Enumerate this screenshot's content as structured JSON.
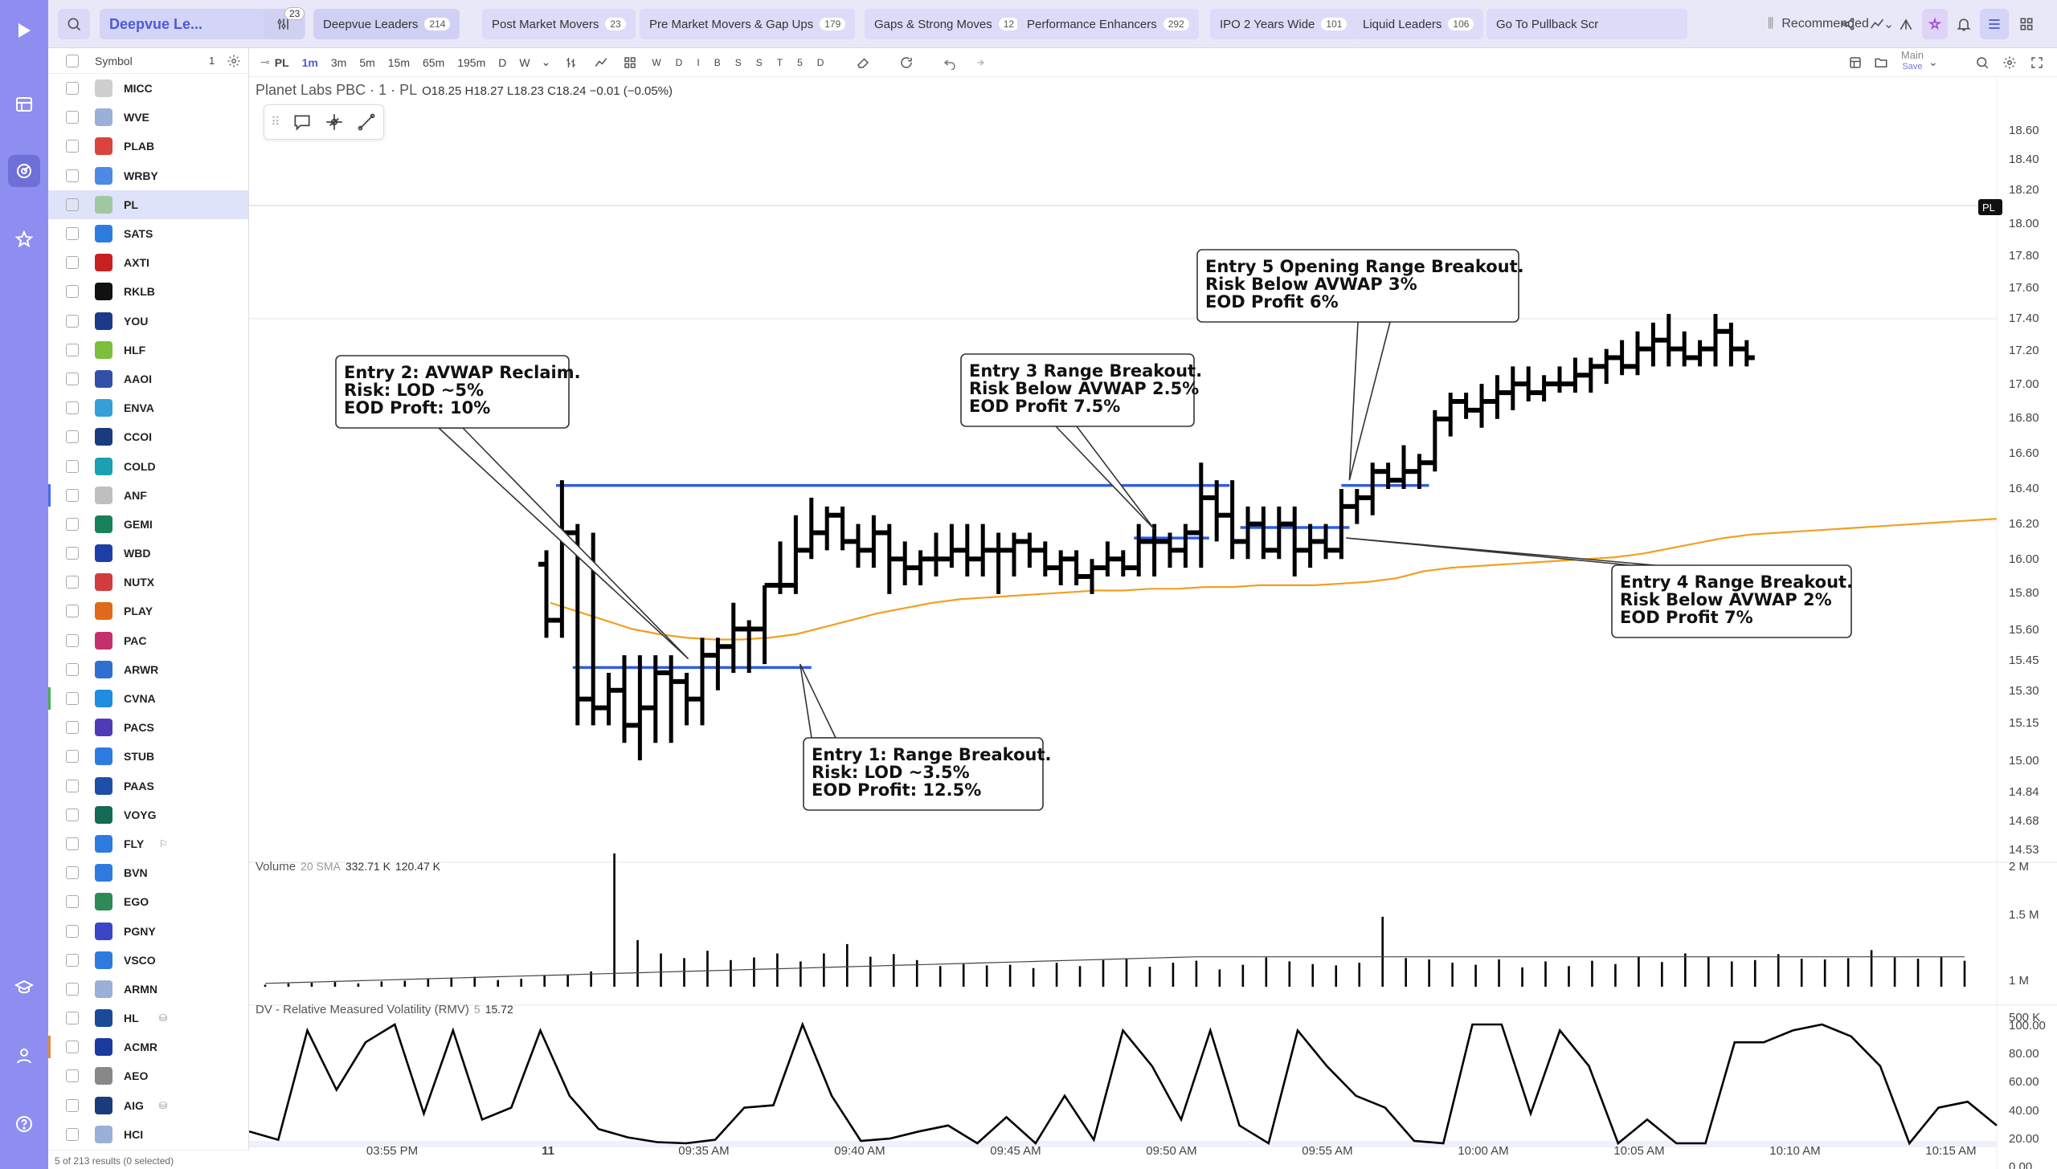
{
  "watchlist": {
    "name": "Deepvue Le...",
    "badge_count": "23"
  },
  "tabs": [
    {
      "label": "Deepvue Leaders",
      "count": "214"
    },
    {
      "label": "Post Market Movers",
      "count": "23"
    },
    {
      "label": "Pre Market Movers & Gap Ups",
      "count": "179"
    },
    {
      "label": "Gaps & Strong Moves",
      "count": "12"
    },
    {
      "label": "Performance Enhancers",
      "count": "292"
    },
    {
      "label": "IPO 2 Years Wide",
      "count": "101"
    },
    {
      "label": "Liquid Leaders",
      "count": "106"
    },
    {
      "label": "Go To Pullback Scr",
      "count": ""
    }
  ],
  "sort_label": "Recommended",
  "sidebar": {
    "header": "Symbol",
    "selected_count": "1",
    "footer": "5 of 213 results (0 selected)",
    "items": [
      {
        "symbol": "MICC",
        "color": "#cfcfcf"
      },
      {
        "symbol": "WVE",
        "color": "#9ab0d8"
      },
      {
        "symbol": "PLAB",
        "color": "#d9443c"
      },
      {
        "symbol": "WRBY",
        "color": "#4d8ae8"
      },
      {
        "symbol": "PL",
        "color": "#a0c8a0"
      },
      {
        "symbol": "SATS",
        "color": "#2e7be0"
      },
      {
        "symbol": "AXTI",
        "color": "#c82020"
      },
      {
        "symbol": "RKLB",
        "color": "#111111"
      },
      {
        "symbol": "YOU",
        "color": "#1b3b8a"
      },
      {
        "symbol": "HLF",
        "color": "#7bbf3b"
      },
      {
        "symbol": "AAOI",
        "color": "#3350a8"
      },
      {
        "symbol": "ENVA",
        "color": "#35a0d8"
      },
      {
        "symbol": "CCOI",
        "color": "#1a3c7e"
      },
      {
        "symbol": "COLD",
        "color": "#1aa0b0"
      },
      {
        "symbol": "ANF",
        "color": "#bfbfbf"
      },
      {
        "symbol": "GEMI",
        "color": "#17825a"
      },
      {
        "symbol": "WBD",
        "color": "#1d3fa8"
      },
      {
        "symbol": "NUTX",
        "color": "#d23c3c"
      },
      {
        "symbol": "PLAY",
        "color": "#e06a1b"
      },
      {
        "symbol": "PAC",
        "color": "#c3306b"
      },
      {
        "symbol": "ARWR",
        "color": "#2f6fd1"
      },
      {
        "symbol": "CVNA",
        "color": "#1f8de0"
      },
      {
        "symbol": "PACS",
        "color": "#4f3bb8"
      },
      {
        "symbol": "STUB",
        "color": "#2e7be0"
      },
      {
        "symbol": "PAAS",
        "color": "#1e4fa8"
      },
      {
        "symbol": "VOYG",
        "color": "#156a55"
      },
      {
        "symbol": "FLY",
        "color": "#2e7be0",
        "extra": "⚐"
      },
      {
        "symbol": "BVN",
        "color": "#2e7be0"
      },
      {
        "symbol": "EGO",
        "color": "#2e8a58"
      },
      {
        "symbol": "PGNY",
        "color": "#3a45c8"
      },
      {
        "symbol": "VSCO",
        "color": "#2e7be0"
      },
      {
        "symbol": "ARMN",
        "color": "#9ab0d8"
      },
      {
        "symbol": "HL",
        "color": "#1a4a98",
        "extra": "⛁"
      },
      {
        "symbol": "ACMR",
        "color": "#1a3aa0"
      },
      {
        "symbol": "AEO",
        "color": "#888888"
      },
      {
        "symbol": "AIG",
        "color": "#1a3c7e",
        "extra": "⛁"
      },
      {
        "symbol": "HCI",
        "color": "#9ab0d8"
      }
    ]
  },
  "chart_toolbar": {
    "symbol": "PL",
    "timeframes": [
      "1m",
      "3m",
      "5m",
      "15m",
      "65m",
      "195m",
      "D",
      "W"
    ],
    "active_timeframe": "1m",
    "filters": [
      "W",
      "D",
      "I",
      "B",
      "S",
      "S",
      "T",
      "5",
      "D"
    ],
    "layout_name": "Main",
    "save_label": "Save"
  },
  "legend": {
    "title": "Planet Labs PBC · 1 · PL",
    "ohlc": "O18.25  H18.27  L18.23  C18.24  −0.01 (−0.05%)"
  },
  "price_axis": [
    "18.60",
    "18.40",
    "18.20",
    "18.00",
    "17.80",
    "17.60",
    "17.40",
    "17.20",
    "17.00",
    "16.80",
    "16.60",
    "16.40",
    "16.20",
    "16.00",
    "15.80",
    "15.60",
    "15.45",
    "15.30",
    "15.15",
    "15.00",
    "14.84",
    "14.68",
    "14.53"
  ],
  "price_tag": "PL",
  "volume_label": {
    "title": "Volume",
    "sub": "20 SMA",
    "v1": "332.71 K",
    "v2": "120.47 K"
  },
  "volume_axis": [
    "2 M",
    "1.5 M",
    "1 M",
    "500 K"
  ],
  "rmv_label": {
    "title": "DV - Relative Measured Volatility (RMV)",
    "sub": "5",
    "value": "15.72"
  },
  "rmv_axis": [
    "100.00",
    "80.00",
    "60.00",
    "40.00",
    "20.00",
    "0.00"
  ],
  "time_axis": [
    "03:55 PM",
    "11",
    "09:35 AM",
    "09:40 AM",
    "09:45 AM",
    "09:50 AM",
    "09:55 AM",
    "10:00 AM",
    "10:05 AM",
    "10:10 AM",
    "10:15 AM"
  ],
  "annotations": [
    {
      "lines": [
        "Entry 2: AVWAP Reclaim.",
        "Risk: LOD ~5%",
        "EOD Proft: 10%"
      ]
    },
    {
      "lines": [
        "Entry 3 Range Breakout.",
        "Risk Below AVWAP 2.5%",
        "EOD Profit 7.5%"
      ]
    },
    {
      "lines": [
        "Entry 5 Opening Range Breakout.",
        "Risk Below AVWAP 3%",
        "EOD Profit 6%"
      ]
    },
    {
      "lines": [
        "Entry 4 Range Breakout.",
        "Risk Below AVWAP 2%",
        "EOD Profit 7%"
      ]
    },
    {
      "lines": [
        "Entry 1: Range Breakout.",
        "Risk: LOD ~3.5%",
        "EOD Profit: 12.5%"
      ]
    }
  ],
  "chart_data": {
    "type": "line",
    "candles": [
      [
        16.12,
        16.2,
        15.7,
        15.8
      ],
      [
        15.8,
        16.6,
        15.7,
        16.3
      ],
      [
        16.3,
        16.35,
        15.2,
        15.35
      ],
      [
        15.35,
        16.3,
        15.2,
        15.3
      ],
      [
        15.3,
        15.5,
        15.2,
        15.4
      ],
      [
        15.4,
        15.6,
        15.1,
        15.2
      ],
      [
        15.2,
        15.6,
        15.0,
        15.3
      ],
      [
        15.3,
        15.6,
        15.1,
        15.5
      ],
      [
        15.5,
        15.6,
        15.1,
        15.45
      ],
      [
        15.45,
        15.5,
        15.2,
        15.35
      ],
      [
        15.35,
        15.7,
        15.2,
        15.6
      ],
      [
        15.6,
        15.7,
        15.4,
        15.65
      ],
      [
        15.65,
        15.9,
        15.5,
        15.75
      ],
      [
        15.75,
        15.8,
        15.5,
        15.75
      ],
      [
        15.75,
        16.0,
        15.55,
        16.0
      ],
      [
        16.0,
        16.25,
        15.95,
        16.0
      ],
      [
        16.0,
        16.4,
        15.95,
        16.2
      ],
      [
        16.2,
        16.5,
        16.15,
        16.3
      ],
      [
        16.3,
        16.45,
        16.2,
        16.4
      ],
      [
        16.4,
        16.45,
        16.2,
        16.25
      ],
      [
        16.25,
        16.35,
        16.1,
        16.2
      ],
      [
        16.2,
        16.4,
        16.1,
        16.3
      ],
      [
        16.3,
        16.35,
        15.95,
        16.15
      ],
      [
        16.15,
        16.25,
        16.0,
        16.1
      ],
      [
        16.1,
        16.2,
        16.0,
        16.15
      ],
      [
        16.15,
        16.3,
        16.05,
        16.15
      ],
      [
        16.15,
        16.35,
        16.1,
        16.2
      ],
      [
        16.2,
        16.35,
        16.05,
        16.15
      ],
      [
        16.15,
        16.35,
        16.05,
        16.2
      ],
      [
        16.2,
        16.3,
        15.95,
        16.2
      ],
      [
        16.2,
        16.3,
        16.05,
        16.25
      ],
      [
        16.25,
        16.3,
        16.1,
        16.2
      ],
      [
        16.2,
        16.25,
        16.05,
        16.1
      ],
      [
        16.1,
        16.2,
        16.0,
        16.15
      ],
      [
        16.15,
        16.2,
        16.0,
        16.05
      ],
      [
        16.05,
        16.15,
        15.95,
        16.1
      ],
      [
        16.1,
        16.25,
        16.05,
        16.15
      ],
      [
        16.15,
        16.2,
        16.05,
        16.1
      ],
      [
        16.1,
        16.35,
        16.05,
        16.25
      ],
      [
        16.25,
        16.35,
        16.05,
        16.25
      ],
      [
        16.25,
        16.3,
        16.1,
        16.2
      ],
      [
        16.2,
        16.35,
        16.1,
        16.3
      ],
      [
        16.3,
        16.7,
        16.1,
        16.5
      ],
      [
        16.5,
        16.6,
        16.25,
        16.4
      ],
      [
        16.4,
        16.6,
        16.15,
        16.25
      ],
      [
        16.25,
        16.45,
        16.15,
        16.35
      ],
      [
        16.35,
        16.45,
        16.15,
        16.2
      ],
      [
        16.2,
        16.45,
        16.15,
        16.35
      ],
      [
        16.35,
        16.45,
        16.05,
        16.2
      ],
      [
        16.2,
        16.35,
        16.1,
        16.25
      ],
      [
        16.25,
        16.35,
        16.15,
        16.2
      ],
      [
        16.2,
        16.55,
        16.15,
        16.45
      ],
      [
        16.45,
        16.55,
        16.35,
        16.5
      ],
      [
        16.5,
        16.7,
        16.4,
        16.65
      ],
      [
        16.65,
        16.7,
        16.55,
        16.6
      ],
      [
        16.6,
        16.8,
        16.55,
        16.65
      ],
      [
        16.65,
        16.75,
        16.55,
        16.7
      ],
      [
        16.7,
        17.0,
        16.65,
        16.95
      ],
      [
        16.95,
        17.1,
        16.85,
        17.05
      ],
      [
        17.05,
        17.1,
        16.95,
        17.0
      ],
      [
        17.0,
        17.15,
        16.9,
        17.05
      ],
      [
        17.05,
        17.2,
        16.95,
        17.1
      ],
      [
        17.1,
        17.25,
        17.0,
        17.15
      ],
      [
        17.15,
        17.25,
        17.05,
        17.1
      ],
      [
        17.1,
        17.2,
        17.05,
        17.15
      ],
      [
        17.15,
        17.25,
        17.1,
        17.15
      ],
      [
        17.15,
        17.3,
        17.1,
        17.2
      ],
      [
        17.2,
        17.3,
        17.1,
        17.25
      ],
      [
        17.25,
        17.35,
        17.15,
        17.3
      ],
      [
        17.3,
        17.4,
        17.2,
        17.25
      ],
      [
        17.25,
        17.45,
        17.2,
        17.35
      ],
      [
        17.35,
        17.5,
        17.25,
        17.4
      ],
      [
        17.4,
        17.55,
        17.25,
        17.35
      ],
      [
        17.35,
        17.45,
        17.25,
        17.3
      ],
      [
        17.3,
        17.4,
        17.25,
        17.35
      ],
      [
        17.35,
        17.55,
        17.25,
        17.45
      ],
      [
        17.45,
        17.5,
        17.25,
        17.35
      ],
      [
        17.35,
        17.4,
        17.25,
        17.3
      ]
    ],
    "avwap": [
      15.9,
      15.85,
      15.8,
      15.75,
      15.72,
      15.7,
      15.69,
      15.69,
      15.7,
      15.72,
      15.76,
      15.8,
      15.84,
      15.87,
      15.9,
      15.92,
      15.93,
      15.94,
      15.95,
      15.96,
      15.97,
      15.97,
      15.98,
      15.98,
      15.99,
      15.99,
      16.0,
      16.0,
      16.0,
      16.01,
      16.02,
      16.04,
      16.08,
      16.1,
      16.11,
      16.12,
      16.13,
      16.14,
      16.15,
      16.16,
      16.18,
      16.21,
      16.24,
      16.27,
      16.29,
      16.3,
      16.31,
      16.32,
      16.33,
      16.34,
      16.35,
      16.36,
      16.37,
      16.38
    ],
    "volume": [
      0.03,
      0.05,
      0.06,
      0.07,
      0.05,
      0.08,
      0.09,
      0.12,
      0.14,
      0.15,
      0.1,
      0.12,
      0.17,
      0.18,
      0.23,
      2.0,
      0.7,
      0.5,
      0.43,
      0.54,
      0.4,
      0.44,
      0.5,
      0.38,
      0.5,
      0.64,
      0.45,
      0.49,
      0.4,
      0.31,
      0.34,
      0.32,
      0.33,
      0.28,
      0.36,
      0.31,
      0.4,
      0.42,
      0.3,
      0.36,
      0.39,
      0.26,
      0.33,
      0.44,
      0.38,
      0.34,
      0.32,
      0.36,
      1.05,
      0.43,
      0.41,
      0.36,
      0.33,
      0.41,
      0.29,
      0.38,
      0.31,
      0.39,
      0.34,
      0.45,
      0.37,
      0.5,
      0.45,
      0.38,
      0.4,
      0.49,
      0.42,
      0.41,
      0.43,
      0.55,
      0.44,
      0.42,
      0.45,
      0.39
    ],
    "rmv": [
      10,
      3,
      95,
      45,
      85,
      100,
      25,
      95,
      20,
      30,
      95,
      40,
      12,
      5,
      1,
      0,
      3,
      30,
      32,
      100,
      40,
      2,
      4,
      10,
      15,
      0,
      22,
      0,
      40,
      3,
      95,
      65,
      20,
      95,
      15,
      0,
      95,
      65,
      40,
      30,
      2,
      0,
      100,
      100,
      25,
      95,
      65,
      0,
      20,
      0,
      0,
      85,
      85,
      95,
      100,
      90,
      65,
      0,
      30,
      35,
      15
    ]
  }
}
